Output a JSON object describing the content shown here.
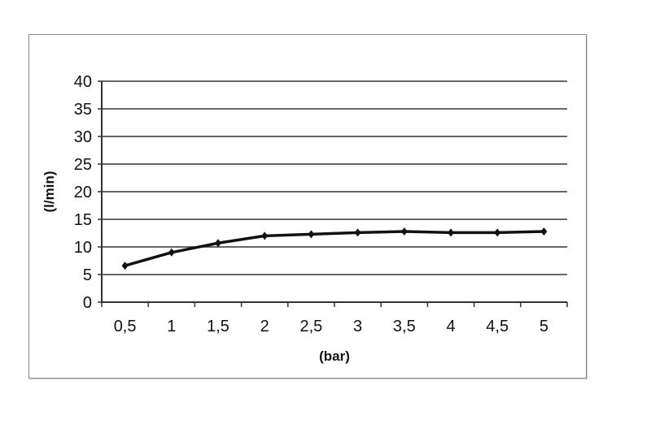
{
  "chart_data": {
    "type": "line",
    "title": "",
    "xlabel": "(bar)",
    "ylabel": "(l/min)",
    "categories": [
      "0,5",
      "1",
      "1,5",
      "2",
      "2,5",
      "3",
      "3,5",
      "4",
      "4,5",
      "5"
    ],
    "series": [
      {
        "values": [
          6.6,
          9.0,
          10.7,
          12.0,
          12.3,
          12.6,
          12.8,
          12.6,
          12.6,
          12.8
        ],
        "color": "#111111",
        "marker": "diamond"
      }
    ],
    "ylim": [
      0,
      40
    ],
    "yticks": [
      0,
      5,
      10,
      15,
      20,
      25,
      30,
      35,
      40
    ],
    "grid": true,
    "legend": "none"
  }
}
